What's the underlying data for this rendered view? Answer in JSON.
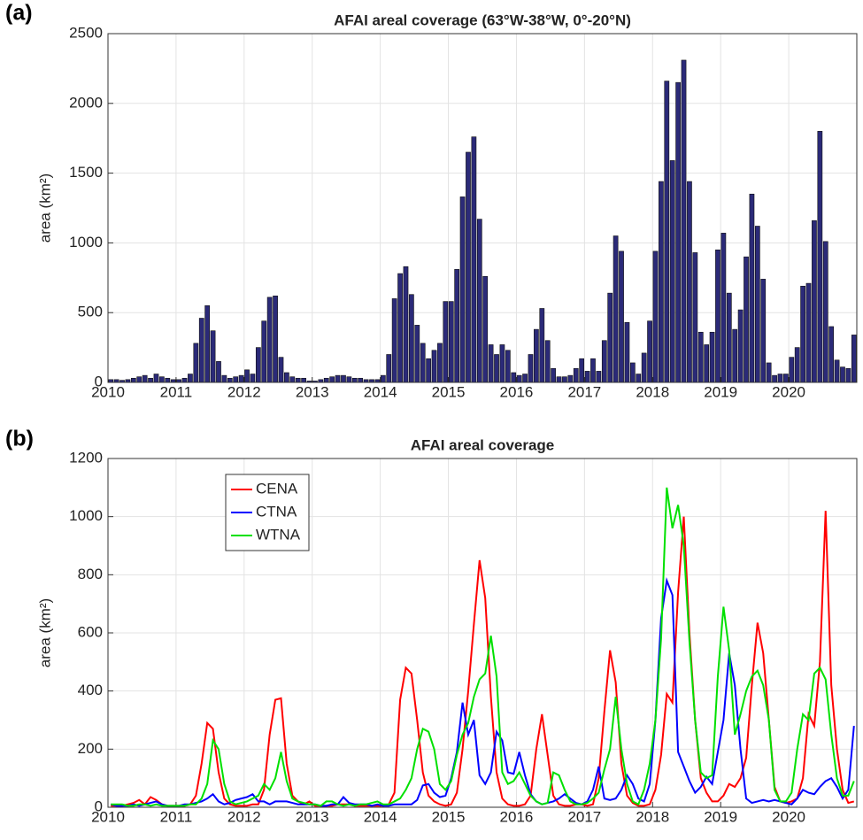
{
  "chart_data": [
    {
      "type": "bar",
      "panel_label": "(a)",
      "title": "AFAI areal coverage (63°W-38°W, 0°-20°N)",
      "y_label": "area (km²)",
      "categories": [
        "2010",
        null,
        null,
        null,
        null,
        null,
        null,
        null,
        null,
        null,
        null,
        null,
        "2011",
        null,
        null,
        null,
        null,
        null,
        null,
        null,
        null,
        null,
        null,
        null,
        "2012",
        null,
        null,
        null,
        null,
        null,
        null,
        null,
        null,
        null,
        null,
        null,
        "2013",
        null,
        null,
        null,
        null,
        null,
        null,
        null,
        null,
        null,
        null,
        null,
        "2014",
        null,
        null,
        null,
        null,
        null,
        null,
        null,
        null,
        null,
        null,
        null,
        "2015",
        null,
        null,
        null,
        null,
        null,
        null,
        null,
        null,
        null,
        null,
        null,
        "2016",
        null,
        null,
        null,
        null,
        null,
        null,
        null,
        null,
        null,
        null,
        null,
        "2017",
        null,
        null,
        null,
        null,
        null,
        null,
        null,
        null,
        null,
        null,
        null,
        "2018",
        null,
        null,
        null,
        null,
        null,
        null,
        null,
        null,
        null,
        null,
        null,
        "2019",
        null,
        null,
        null,
        null,
        null,
        null,
        null,
        null,
        null,
        null,
        null,
        "2020",
        null,
        null,
        null,
        null,
        null,
        null,
        null,
        null,
        null,
        null,
        null
      ],
      "values": [
        20,
        20,
        15,
        20,
        30,
        40,
        50,
        30,
        60,
        40,
        30,
        20,
        20,
        30,
        60,
        280,
        460,
        550,
        370,
        150,
        50,
        30,
        40,
        50,
        90,
        60,
        250,
        440,
        610,
        620,
        180,
        70,
        40,
        30,
        30,
        10,
        10,
        20,
        30,
        40,
        50,
        50,
        40,
        30,
        30,
        20,
        20,
        20,
        50,
        200,
        600,
        780,
        830,
        630,
        410,
        280,
        170,
        230,
        280,
        580,
        580,
        810,
        1330,
        1650,
        1760,
        1170,
        760,
        270,
        200,
        270,
        230,
        70,
        50,
        60,
        200,
        380,
        530,
        300,
        100,
        40,
        40,
        50,
        100,
        170,
        80,
        170,
        80,
        300,
        640,
        1050,
        940,
        430,
        140,
        60,
        210,
        440,
        940,
        1440,
        2160,
        1590,
        2150,
        2310,
        1440,
        930,
        360,
        270,
        360,
        950,
        1070,
        640,
        380,
        520,
        900,
        1350,
        1120,
        740,
        140,
        50,
        60,
        60,
        180,
        250,
        690,
        710,
        1160,
        1800,
        1010,
        400,
        160,
        110,
        100,
        340
      ],
      "color": "#2b2a78",
      "ylim": [
        0,
        2500
      ],
      "yticks": [
        0,
        500,
        1000,
        1500,
        2000,
        2500
      ],
      "grid": true
    },
    {
      "type": "line",
      "panel_label": "(b)",
      "title": "AFAI areal coverage",
      "y_label": "area (km²)",
      "categories": [
        "2010",
        null,
        null,
        null,
        null,
        null,
        null,
        null,
        null,
        null,
        null,
        null,
        "2011",
        null,
        null,
        null,
        null,
        null,
        null,
        null,
        null,
        null,
        null,
        null,
        "2012",
        null,
        null,
        null,
        null,
        null,
        null,
        null,
        null,
        null,
        null,
        null,
        "2013",
        null,
        null,
        null,
        null,
        null,
        null,
        null,
        null,
        null,
        null,
        null,
        "2014",
        null,
        null,
        null,
        null,
        null,
        null,
        null,
        null,
        null,
        null,
        null,
        "2015",
        null,
        null,
        null,
        null,
        null,
        null,
        null,
        null,
        null,
        null,
        null,
        "2016",
        null,
        null,
        null,
        null,
        null,
        null,
        null,
        null,
        null,
        null,
        null,
        "2017",
        null,
        null,
        null,
        null,
        null,
        null,
        null,
        null,
        null,
        null,
        null,
        "2018",
        null,
        null,
        null,
        null,
        null,
        null,
        null,
        null,
        null,
        null,
        null,
        "2019",
        null,
        null,
        null,
        null,
        null,
        null,
        null,
        null,
        null,
        null,
        null,
        "2020",
        null,
        null,
        null,
        null,
        null,
        null,
        null,
        null,
        null,
        null,
        null
      ],
      "series": [
        {
          "name": "CENA",
          "color": "#ff0000",
          "values": [
            5,
            5,
            5,
            10,
            15,
            25,
            10,
            35,
            25,
            10,
            5,
            5,
            5,
            5,
            10,
            40,
            150,
            290,
            270,
            120,
            30,
            10,
            5,
            5,
            5,
            10,
            10,
            60,
            250,
            370,
            375,
            150,
            40,
            20,
            10,
            20,
            5,
            5,
            5,
            5,
            10,
            10,
            10,
            5,
            5,
            5,
            5,
            5,
            5,
            10,
            50,
            370,
            480,
            460,
            300,
            120,
            40,
            20,
            10,
            5,
            10,
            50,
            200,
            400,
            630,
            850,
            720,
            380,
            120,
            30,
            10,
            5,
            5,
            10,
            40,
            200,
            320,
            180,
            40,
            10,
            5,
            5,
            10,
            10,
            5,
            10,
            100,
            330,
            540,
            430,
            150,
            40,
            15,
            5,
            5,
            10,
            60,
            180,
            390,
            360,
            740,
            1000,
            600,
            300,
            100,
            50,
            20,
            20,
            40,
            80,
            70,
            100,
            170,
            420,
            635,
            530,
            300,
            70,
            20,
            15,
            20,
            30,
            100,
            320,
            280,
            500,
            1020,
            420,
            200,
            60,
            15,
            20
          ]
        },
        {
          "name": "CTNA",
          "color": "#0000ff",
          "values": [
            10,
            5,
            5,
            5,
            10,
            5,
            10,
            15,
            20,
            10,
            5,
            5,
            5,
            10,
            10,
            15,
            20,
            30,
            45,
            20,
            10,
            15,
            25,
            30,
            35,
            45,
            20,
            20,
            10,
            20,
            20,
            20,
            15,
            10,
            10,
            10,
            10,
            5,
            5,
            10,
            10,
            35,
            15,
            10,
            10,
            10,
            5,
            10,
            5,
            5,
            10,
            10,
            10,
            10,
            25,
            75,
            80,
            50,
            35,
            40,
            100,
            190,
            360,
            250,
            300,
            110,
            80,
            120,
            260,
            230,
            120,
            115,
            190,
            110,
            45,
            20,
            10,
            15,
            20,
            30,
            45,
            30,
            15,
            10,
            20,
            60,
            140,
            30,
            25,
            30,
            60,
            110,
            80,
            30,
            20,
            80,
            300,
            650,
            780,
            730,
            190,
            140,
            90,
            50,
            70,
            105,
            80,
            190,
            300,
            530,
            420,
            200,
            30,
            15,
            20,
            25,
            20,
            25,
            20,
            15,
            10,
            30,
            60,
            50,
            45,
            70,
            90,
            100,
            70,
            30,
            60,
            280
          ]
        },
        {
          "name": "WTNA",
          "color": "#00e000",
          "values": [
            10,
            10,
            10,
            5,
            5,
            10,
            10,
            5,
            10,
            5,
            5,
            5,
            5,
            5,
            10,
            10,
            30,
            80,
            230,
            200,
            80,
            20,
            10,
            15,
            20,
            30,
            40,
            80,
            60,
            100,
            190,
            90,
            30,
            20,
            15,
            10,
            10,
            5,
            20,
            20,
            10,
            5,
            10,
            5,
            10,
            10,
            15,
            20,
            10,
            10,
            20,
            30,
            60,
            100,
            200,
            270,
            260,
            200,
            80,
            60,
            90,
            180,
            250,
            290,
            380,
            440,
            460,
            590,
            450,
            120,
            80,
            90,
            120,
            80,
            40,
            20,
            10,
            15,
            120,
            110,
            60,
            20,
            10,
            10,
            15,
            30,
            50,
            130,
            200,
            380,
            200,
            80,
            20,
            10,
            60,
            150,
            300,
            580,
            1100,
            960,
            1040,
            900,
            570,
            300,
            120,
            100,
            110,
            450,
            690,
            540,
            250,
            320,
            400,
            450,
            470,
            420,
            300,
            60,
            20,
            20,
            50,
            200,
            320,
            300,
            460,
            480,
            440,
            250,
            100,
            40,
            40,
            90
          ]
        }
      ],
      "ylim": [
        0,
        1200
      ],
      "yticks": [
        0,
        200,
        400,
        600,
        800,
        1000,
        1200
      ],
      "grid": true,
      "legend": "upper left"
    }
  ]
}
